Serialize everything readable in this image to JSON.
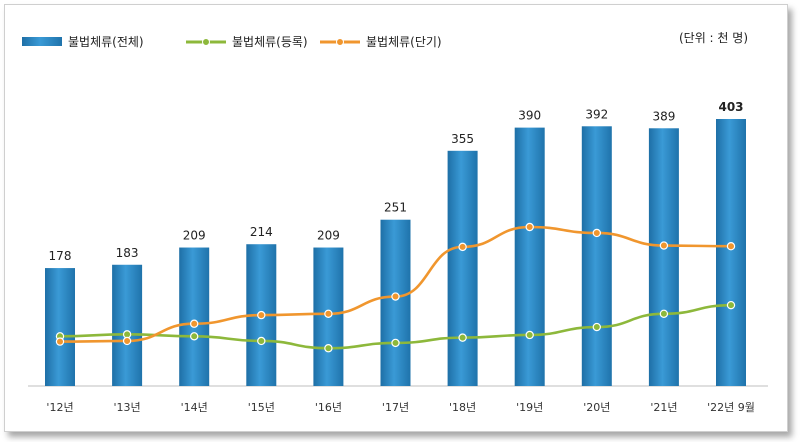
{
  "chart_data": {
    "type": "bar",
    "unit_label": "(단위 : 천 명)",
    "categories": [
      "'12년",
      "'13년",
      "'14년",
      "'15년",
      "'16년",
      "'17년",
      "'18년",
      "'19년",
      "'20년",
      "'21년",
      "'22년 9월"
    ],
    "series": [
      {
        "name": "불법체류(전체)",
        "type": "bar",
        "color": "#2f8dc8",
        "values": [
          178,
          183,
          209,
          214,
          209,
          251,
          355,
          390,
          392,
          389,
          403
        ],
        "value_labels": [
          "178",
          "183",
          "209",
          "214",
          "209",
          "251",
          "355",
          "390",
          "392",
          "389",
          "403"
        ]
      },
      {
        "name": "불법체류(등록)",
        "type": "line",
        "color": "#8db83b",
        "values": [
          75,
          78,
          75,
          68,
          57,
          65,
          73,
          77,
          89,
          109,
          122
        ]
      },
      {
        "name": "불법체류(단기)",
        "type": "line",
        "color": "#f0962e",
        "values": [
          67,
          68,
          94,
          107,
          109,
          135,
          210,
          240,
          231,
          212,
          211
        ]
      }
    ],
    "ylim": [
      0,
      430
    ],
    "grid": false,
    "legend_position": "top-left"
  }
}
